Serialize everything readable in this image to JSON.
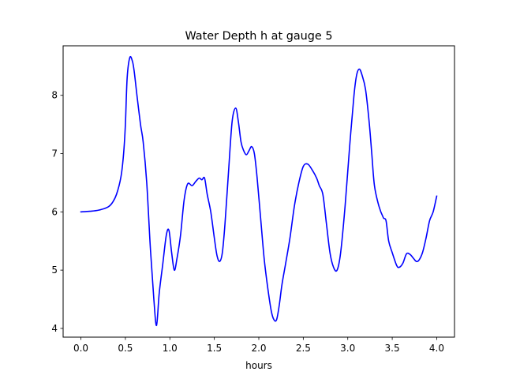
{
  "chart_data": {
    "type": "line",
    "title": "Water Depth h at gauge 5",
    "xlabel": "hours",
    "ylabel": "",
    "xlim": [
      -0.2,
      4.2
    ],
    "ylim": [
      3.85,
      8.85
    ],
    "xticks": [
      0.0,
      0.5,
      1.0,
      1.5,
      2.0,
      2.5,
      3.0,
      3.5,
      4.0
    ],
    "xtick_labels": [
      "0.0",
      "0.5",
      "1.0",
      "1.5",
      "2.0",
      "2.5",
      "3.0",
      "3.5",
      "4.0"
    ],
    "yticks": [
      4,
      5,
      6,
      7,
      8
    ],
    "ytick_labels": [
      "4",
      "5",
      "6",
      "7",
      "8"
    ],
    "grid": false,
    "series": [
      {
        "color": "#0000ff",
        "x": [
          0.0,
          0.1,
          0.2,
          0.3,
          0.35,
          0.4,
          0.45,
          0.48,
          0.5,
          0.52,
          0.55,
          0.58,
          0.6,
          0.63,
          0.67,
          0.7,
          0.74,
          0.78,
          0.82,
          0.85,
          0.88,
          0.92,
          0.96,
          0.99,
          1.02,
          1.05,
          1.08,
          1.12,
          1.16,
          1.2,
          1.25,
          1.29,
          1.33,
          1.36,
          1.39,
          1.42,
          1.46,
          1.5,
          1.53,
          1.56,
          1.59,
          1.62,
          1.66,
          1.7,
          1.74,
          1.77,
          1.8,
          1.83,
          1.86,
          1.89,
          1.92,
          1.95,
          1.98,
          2.02,
          2.06,
          2.1,
          2.14,
          2.17,
          2.2,
          2.23,
          2.26,
          2.3,
          2.35,
          2.4,
          2.45,
          2.5,
          2.55,
          2.6,
          2.65,
          2.68,
          2.72,
          2.76,
          2.8,
          2.84,
          2.88,
          2.92,
          2.97,
          3.02,
          3.07,
          3.1,
          3.13,
          3.16,
          3.2,
          3.24,
          3.27,
          3.3,
          3.35,
          3.4,
          3.43,
          3.46,
          3.5,
          3.55,
          3.58,
          3.62,
          3.66,
          3.7,
          3.74,
          3.77,
          3.8,
          3.84,
          3.88,
          3.92,
          3.96,
          4.0
        ],
        "y": [
          6.0,
          6.01,
          6.03,
          6.08,
          6.15,
          6.3,
          6.6,
          7.0,
          7.5,
          8.3,
          8.65,
          8.58,
          8.4,
          8.0,
          7.5,
          7.2,
          6.5,
          5.4,
          4.5,
          4.05,
          4.6,
          5.1,
          5.6,
          5.68,
          5.3,
          5.0,
          5.2,
          5.6,
          6.2,
          6.48,
          6.45,
          6.52,
          6.58,
          6.55,
          6.58,
          6.3,
          6.0,
          5.55,
          5.25,
          5.15,
          5.3,
          5.8,
          6.7,
          7.55,
          7.78,
          7.55,
          7.2,
          7.05,
          6.98,
          7.05,
          7.12,
          7.0,
          6.6,
          5.9,
          5.2,
          4.7,
          4.3,
          4.15,
          4.15,
          4.4,
          4.75,
          5.1,
          5.55,
          6.1,
          6.5,
          6.78,
          6.82,
          6.72,
          6.58,
          6.45,
          6.3,
          5.8,
          5.3,
          5.05,
          5.0,
          5.3,
          6.1,
          7.1,
          8.0,
          8.35,
          8.45,
          8.35,
          8.1,
          7.55,
          7.0,
          6.45,
          6.1,
          5.9,
          5.85,
          5.5,
          5.3,
          5.08,
          5.05,
          5.12,
          5.28,
          5.27,
          5.2,
          5.15,
          5.17,
          5.3,
          5.55,
          5.85,
          6.0,
          6.27
        ]
      }
    ]
  }
}
